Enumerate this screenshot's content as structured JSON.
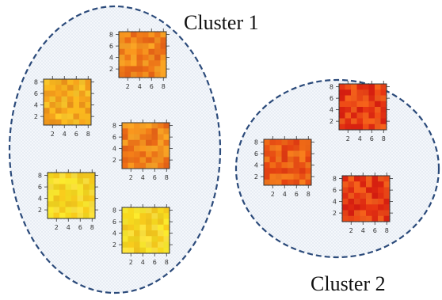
{
  "clusters": [
    {
      "label": "Cluster 1",
      "boundary_style": "dashed ellipse",
      "heatmaps": [
        {
          "palette": "orange",
          "x_ticks": [
            "2",
            "4",
            "6",
            "8"
          ],
          "y_ticks": [
            "2",
            "4",
            "6",
            "8"
          ]
        },
        {
          "palette": "orange-yellow",
          "x_ticks": [
            "2",
            "4",
            "6",
            "8"
          ],
          "y_ticks": [
            "2",
            "4",
            "6",
            "8"
          ]
        },
        {
          "palette": "orange",
          "x_ticks": [
            "2",
            "4",
            "6",
            "8"
          ],
          "y_ticks": [
            "2",
            "4",
            "6",
            "8"
          ]
        },
        {
          "palette": "yellow",
          "x_ticks": [
            "2",
            "4",
            "6",
            "8"
          ],
          "y_ticks": [
            "2",
            "4",
            "6",
            "8"
          ]
        },
        {
          "palette": "yellow",
          "x_ticks": [
            "2",
            "4",
            "6",
            "8"
          ],
          "y_ticks": [
            "2",
            "4",
            "6",
            "8"
          ]
        }
      ]
    },
    {
      "label": "Cluster 2",
      "boundary_style": "dashed circle",
      "heatmaps": [
        {
          "palette": "red",
          "x_ticks": [
            "2",
            "4",
            "6",
            "8"
          ],
          "y_ticks": [
            "2",
            "4",
            "6",
            "8"
          ]
        },
        {
          "palette": "red-orange",
          "x_ticks": [
            "2",
            "4",
            "6",
            "8"
          ],
          "y_ticks": [
            "2",
            "4",
            "6",
            "8"
          ]
        },
        {
          "palette": "red",
          "x_ticks": [
            "2",
            "4",
            "6",
            "8"
          ],
          "y_ticks": [
            "2",
            "4",
            "6",
            "8"
          ]
        }
      ]
    }
  ],
  "colors": {
    "boundary": "#2b4a7a",
    "region_fill": "#eef3f8",
    "yellow": "#f2dc2a",
    "orange": "#f08a1a",
    "red": "#e8401a"
  }
}
